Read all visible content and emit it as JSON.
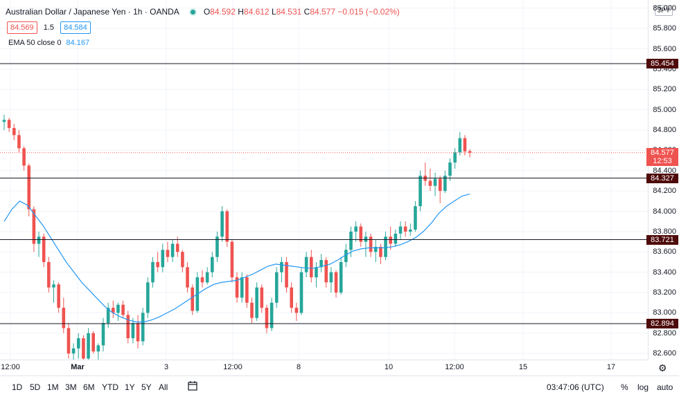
{
  "header": {
    "title": "Australian Dollar / Japanese Yen · 1h · OANDA",
    "o_label": "O",
    "o_value": "84.592",
    "h_label": "H",
    "h_value": "84.612",
    "l_label": "L",
    "l_value": "84.531",
    "c_label": "C",
    "c_value": "84.577",
    "change": "−0.015 (−0.02%)"
  },
  "quote": {
    "bid": "84.569",
    "spread": "1.5",
    "ask": "84.584",
    "bid_color": "#ef5350",
    "ask_color": "#2196f3"
  },
  "ema": {
    "label": "EMA 50 close 0",
    "value": "84.167",
    "color": "#2196f3"
  },
  "currency": "JPY",
  "price_axis": {
    "ticks": [
      "86.000",
      "85.800",
      "85.600",
      "85.400",
      "85.200",
      "85.000",
      "84.800",
      "84.600",
      "84.400",
      "84.200",
      "84.000",
      "83.800",
      "83.600",
      "83.400",
      "83.200",
      "83.000",
      "82.800",
      "82.600"
    ],
    "range": [
      82.54,
      86.08
    ]
  },
  "horizontal_lines": [
    {
      "price": 85.454,
      "label": "85.454"
    },
    {
      "price": 84.327,
      "label": "84.327"
    },
    {
      "price": 83.721,
      "label": "83.721"
    },
    {
      "price": 82.894,
      "label": "82.894"
    }
  ],
  "last_price": {
    "price": 84.577,
    "label": "84.577",
    "countdown": "12:53",
    "color": "#ef5350"
  },
  "time_axis": {
    "ticks": [
      "12:00",
      "Mar",
      "3",
      "12:00",
      "8",
      "10",
      "12:00",
      "15",
      "17"
    ]
  },
  "bottom_bar": {
    "ranges": [
      "1D",
      "5D",
      "1M",
      "3M",
      "6M",
      "YTD",
      "1Y",
      "5Y",
      "All"
    ],
    "clock": "03:47:06 (UTC)",
    "percent": "%",
    "log": "log",
    "auto": "auto"
  },
  "colors": {
    "up": "#26a69a",
    "down": "#ef5350",
    "level_line": "#131722",
    "level_tag": "#4e0a0a",
    "ema": "#2196f3"
  },
  "chart_data": {
    "type": "candlestick",
    "series": [
      {
        "name": "Australian Dollar / Japanese Yen",
        "values": [
          [
            84.88,
            84.95,
            84.8,
            84.9
          ],
          [
            84.9,
            84.92,
            84.78,
            84.82
          ],
          [
            84.82,
            84.86,
            84.7,
            84.75
          ],
          [
            84.75,
            84.8,
            84.58,
            84.62
          ],
          [
            84.62,
            84.64,
            84.4,
            84.45
          ],
          [
            84.45,
            84.47,
            83.95,
            84.02
          ],
          [
            84.02,
            84.05,
            83.6,
            83.68
          ],
          [
            83.68,
            83.8,
            83.55,
            83.75
          ],
          [
            83.75,
            83.78,
            83.45,
            83.5
          ],
          [
            83.5,
            83.55,
            83.2,
            83.25
          ],
          [
            83.25,
            83.32,
            83.1,
            83.28
          ],
          [
            83.28,
            83.3,
            83.0,
            83.05
          ],
          [
            83.05,
            83.15,
            82.8,
            82.85
          ],
          [
            82.85,
            82.9,
            82.55,
            82.6
          ],
          [
            82.6,
            82.7,
            82.45,
            82.65
          ],
          [
            82.65,
            82.8,
            82.55,
            82.75
          ],
          [
            82.75,
            82.78,
            82.5,
            82.55
          ],
          [
            82.55,
            82.85,
            82.5,
            82.8
          ],
          [
            82.8,
            82.82,
            82.6,
            82.62
          ],
          [
            82.62,
            82.7,
            82.45,
            82.68
          ],
          [
            82.68,
            82.95,
            82.62,
            82.9
          ],
          [
            82.9,
            83.1,
            82.85,
            83.05
          ],
          [
            83.05,
            83.12,
            82.95,
            83.0
          ],
          [
            83.0,
            83.1,
            82.92,
            83.08
          ],
          [
            83.08,
            83.12,
            82.95,
            82.98
          ],
          [
            82.98,
            83.02,
            82.7,
            82.75
          ],
          [
            82.75,
            82.95,
            82.7,
            82.9
          ],
          [
            82.9,
            82.98,
            82.65,
            82.72
          ],
          [
            82.72,
            83.05,
            82.68,
            83.0
          ],
          [
            83.0,
            83.35,
            82.95,
            83.3
          ],
          [
            83.3,
            83.55,
            83.25,
            83.5
          ],
          [
            83.5,
            83.6,
            83.4,
            83.45
          ],
          [
            83.45,
            83.68,
            83.4,
            83.62
          ],
          [
            83.62,
            83.7,
            83.5,
            83.55
          ],
          [
            83.55,
            83.72,
            83.5,
            83.68
          ],
          [
            83.68,
            83.75,
            83.55,
            83.6
          ],
          [
            83.6,
            83.62,
            83.4,
            83.45
          ],
          [
            83.45,
            83.5,
            83.2,
            83.25
          ],
          [
            83.25,
            83.28,
            82.98,
            83.02
          ],
          [
            83.02,
            83.4,
            83.0,
            83.35
          ],
          [
            83.35,
            83.42,
            83.25,
            83.3
          ],
          [
            83.3,
            83.45,
            83.28,
            83.4
          ],
          [
            83.4,
            83.6,
            83.35,
            83.55
          ],
          [
            83.55,
            83.8,
            83.5,
            83.75
          ],
          [
            83.75,
            84.05,
            83.7,
            84.0
          ],
          [
            84.0,
            84.02,
            83.65,
            83.7
          ],
          [
            83.7,
            83.72,
            83.3,
            83.35
          ],
          [
            83.35,
            83.4,
            83.1,
            83.15
          ],
          [
            83.15,
            83.4,
            83.1,
            83.35
          ],
          [
            83.35,
            83.38,
            83.05,
            83.1
          ],
          [
            83.1,
            83.15,
            82.9,
            82.95
          ],
          [
            82.95,
            83.3,
            82.92,
            83.25
          ],
          [
            83.25,
            83.28,
            83.0,
            83.05
          ],
          [
            83.05,
            83.08,
            82.8,
            82.85
          ],
          [
            82.85,
            83.15,
            82.82,
            83.1
          ],
          [
            83.1,
            83.45,
            83.05,
            83.4
          ],
          [
            83.4,
            83.55,
            83.3,
            83.5
          ],
          [
            83.5,
            83.55,
            83.2,
            83.25
          ],
          [
            83.25,
            83.3,
            83.0,
            83.05
          ],
          [
            83.05,
            83.1,
            82.92,
            83.0
          ],
          [
            83.0,
            83.45,
            82.98,
            83.4
          ],
          [
            83.4,
            83.6,
            83.35,
            83.55
          ],
          [
            83.55,
            83.62,
            83.3,
            83.35
          ],
          [
            83.35,
            83.5,
            83.25,
            83.45
          ],
          [
            83.45,
            83.58,
            83.4,
            83.52
          ],
          [
            83.52,
            83.55,
            83.25,
            83.3
          ],
          [
            83.3,
            83.45,
            83.2,
            83.4
          ],
          [
            83.4,
            83.42,
            83.15,
            83.2
          ],
          [
            83.2,
            83.55,
            83.18,
            83.5
          ],
          [
            83.5,
            83.68,
            83.45,
            83.62
          ],
          [
            83.62,
            83.85,
            83.55,
            83.8
          ],
          [
            83.8,
            83.9,
            83.7,
            83.85
          ],
          [
            83.85,
            83.88,
            83.65,
            83.7
          ],
          [
            83.7,
            83.8,
            83.55,
            83.75
          ],
          [
            83.75,
            83.78,
            83.55,
            83.6
          ],
          [
            83.6,
            83.72,
            83.5,
            83.65
          ],
          [
            83.65,
            83.68,
            83.48,
            83.55
          ],
          [
            83.55,
            83.8,
            83.52,
            83.75
          ],
          [
            83.75,
            83.85,
            83.62,
            83.68
          ],
          [
            83.68,
            83.82,
            83.65,
            83.78
          ],
          [
            83.78,
            83.9,
            83.72,
            83.85
          ],
          [
            83.85,
            83.9,
            83.75,
            83.8
          ],
          [
            83.8,
            83.88,
            83.76,
            83.82
          ],
          [
            83.82,
            84.1,
            83.8,
            84.05
          ],
          [
            84.05,
            84.4,
            84.0,
            84.35
          ],
          [
            84.35,
            84.48,
            84.25,
            84.3
          ],
          [
            84.3,
            84.42,
            84.2,
            84.25
          ],
          [
            84.25,
            84.38,
            84.15,
            84.32
          ],
          [
            84.32,
            84.35,
            84.08,
            84.2
          ],
          [
            84.2,
            84.4,
            84.18,
            84.35
          ],
          [
            84.35,
            84.52,
            84.3,
            84.48
          ],
          [
            84.48,
            84.62,
            84.42,
            84.58
          ],
          [
            84.58,
            84.78,
            84.55,
            84.72
          ],
          [
            84.72,
            84.75,
            84.55,
            84.59
          ],
          [
            84.592,
            84.612,
            84.531,
            84.577
          ]
        ]
      }
    ],
    "ema_values": [
      83.9,
      84.02,
      84.1,
      84.06,
      83.96,
      83.86,
      83.74,
      83.62,
      83.5,
      83.4,
      83.3,
      83.22,
      83.14,
      83.06,
      83.0,
      82.96,
      82.93,
      82.91,
      82.91,
      82.93,
      82.96,
      83.0,
      83.04,
      83.09,
      83.14,
      83.19,
      83.24,
      83.28,
      83.3,
      83.31,
      83.32,
      83.35,
      83.38,
      83.42,
      83.46,
      83.48,
      83.47,
      83.46,
      83.45,
      83.44,
      83.44,
      83.46,
      83.48,
      83.52,
      83.57,
      83.61,
      83.63,
      83.64,
      83.64,
      83.64,
      83.65,
      83.67,
      83.7,
      83.74,
      83.8,
      83.88,
      83.98,
      84.05,
      84.1,
      84.15,
      84.17
    ],
    "ema_start_index": 0,
    "yrange": [
      82.54,
      86.08
    ]
  }
}
